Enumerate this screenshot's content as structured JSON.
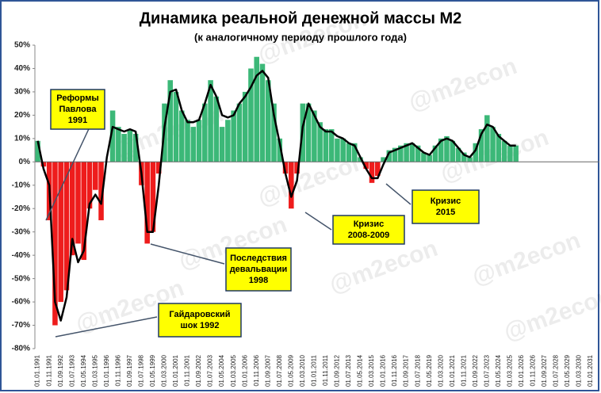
{
  "chart_data": {
    "type": "bar",
    "title": "Динамика реальной денежной массы М2",
    "subtitle": "(к аналогичному периоду прошлого года)",
    "watermark": "@m2econ",
    "categories": [
      "01.01.1991",
      null,
      "01.11.1991",
      null,
      "01.09.1992",
      null,
      "01.07.1993",
      null,
      "01.05.1994",
      null,
      "01.03.1995",
      null,
      "01.01.1996",
      null,
      "01.11.1996",
      null,
      "01.09.1997",
      null,
      "01.07.1998",
      null,
      "01.05.1999",
      null,
      "01.03.2000",
      null,
      "01.01.2001",
      null,
      "01.11.2001",
      null,
      "01.09.2002",
      null,
      "01.07.2003",
      null,
      "01.05.2004",
      null,
      "01.03.2005",
      null,
      "01.01.2006",
      null,
      "01.11.2006",
      null,
      "01.09.2007",
      null,
      "01.07.2008",
      null,
      "01.05.2009",
      null,
      "01.03.2010",
      null,
      "01.01.2011",
      null,
      "01.11.2011",
      null,
      "01.09.2012",
      null,
      "01.07.2013",
      null,
      "01.05.2014",
      null,
      "01.03.2015",
      null,
      "01.01.2016",
      null,
      "01.11.2016",
      null,
      "01.09.2017",
      null,
      "01.07.2018",
      null,
      "01.05.2019",
      null,
      "01.03.2020",
      null,
      "01.01.2021",
      null,
      "01.11.2021",
      null,
      "01.09.2022",
      null,
      "01.07.2023",
      null,
      "01.05.2024",
      null,
      "01.03.2025",
      null,
      "01.01.2026",
      null,
      "01.11.2026",
      null,
      "01.09.2027",
      null,
      "01.07.2028",
      null,
      "01.05.2029",
      null,
      "01.03.2030",
      null,
      "01.01.2031",
      null
    ],
    "values": [
      9,
      -2,
      -25,
      -70,
      -60,
      -55,
      -40,
      -35,
      -42,
      -20,
      -12,
      -25,
      0,
      22,
      15,
      12,
      14,
      12,
      -10,
      -35,
      -30,
      -5,
      25,
      35,
      30,
      22,
      18,
      15,
      18,
      25,
      35,
      28,
      15,
      18,
      22,
      25,
      30,
      40,
      45,
      42,
      35,
      25,
      10,
      -5,
      -20,
      -5,
      25,
      25,
      22,
      17,
      14,
      14,
      10,
      10,
      8,
      8,
      2,
      -3,
      -9,
      -6,
      2,
      5,
      6,
      7,
      8,
      8,
      7,
      4,
      3,
      7,
      10,
      11,
      9,
      6,
      4,
      2,
      8,
      14,
      20,
      15,
      12,
      9,
      7,
      7,
      null,
      null,
      null,
      null,
      null,
      null,
      null,
      null,
      null,
      null,
      null,
      null,
      null,
      null
    ],
    "trend": [
      9,
      -3,
      -10,
      -60,
      -68,
      -58,
      -33,
      -43,
      -38,
      -18,
      -14,
      -18,
      2,
      15,
      14,
      13,
      14,
      13,
      -5,
      -30,
      -30,
      -10,
      15,
      30,
      31,
      22,
      17,
      17,
      18,
      25,
      33,
      28,
      20,
      19,
      20,
      25,
      28,
      32,
      37,
      39,
      36,
      20,
      8,
      -5,
      -15,
      -8,
      15,
      25,
      20,
      15,
      13,
      13,
      11,
      10,
      8,
      7,
      2,
      -3,
      -7,
      -7,
      -1,
      4,
      5,
      6,
      7,
      8,
      6,
      4,
      3,
      6,
      9,
      10,
      9,
      6,
      3,
      2,
      5,
      12,
      16,
      15,
      11,
      9,
      7,
      7,
      null,
      null,
      null,
      null,
      null,
      null,
      null,
      null,
      null,
      null,
      null,
      null,
      null,
      null
    ],
    "positive_color": "#3cb878",
    "negative_color": "#ee1c1c",
    "trend_color": "#000000",
    "ylim": [
      -80,
      50
    ],
    "yticks": [
      {
        "value": -80,
        "label": "-80%"
      },
      {
        "value": -70,
        "label": "-70%"
      },
      {
        "value": -60,
        "label": "-60%"
      },
      {
        "value": -50,
        "label": "-50%"
      },
      {
        "value": -40,
        "label": "-40%"
      },
      {
        "value": -30,
        "label": "-30%"
      },
      {
        "value": -20,
        "label": "-20%"
      },
      {
        "value": -10,
        "label": "-10%"
      },
      {
        "value": 0,
        "label": "0%"
      },
      {
        "value": 10,
        "label": "10%"
      },
      {
        "value": 20,
        "label": "20%"
      },
      {
        "value": 30,
        "label": "30%"
      },
      {
        "value": 40,
        "label": "40%"
      },
      {
        "value": 50,
        "label": "50%"
      }
    ],
    "grid": false,
    "annotations": [
      [
        "Реформы",
        "Павлова",
        "1991"
      ],
      [
        "Гайдаровский",
        "шок 1992"
      ],
      [
        "Последствия",
        "девальвации",
        "1998"
      ],
      [
        "Кризис",
        "2008-2009"
      ],
      [
        "Кризис",
        "2015"
      ]
    ]
  }
}
